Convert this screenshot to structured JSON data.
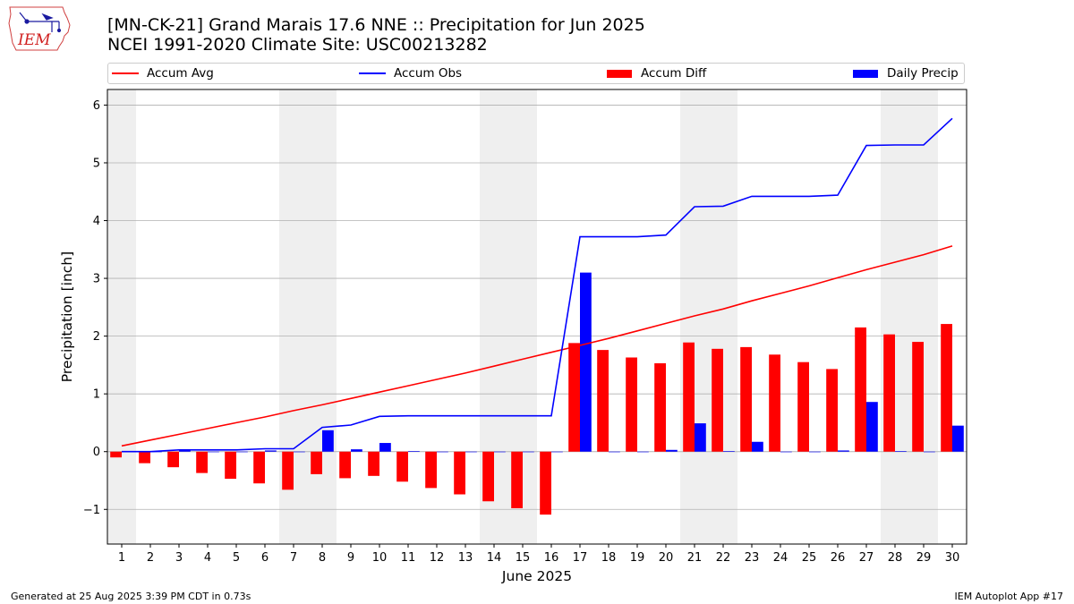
{
  "header": {
    "title_line1": "[MN-CK-21] Grand Marais 17.6 NNE :: Precipitation for Jun 2025",
    "title_line2": "NCEI 1991-2020 Climate Site: USC00213282",
    "logo_text": "IEM"
  },
  "legend": {
    "items": [
      {
        "label": "Accum Avg",
        "color": "#ff0000",
        "kind": "line"
      },
      {
        "label": "Accum Obs",
        "color": "#0000ff",
        "kind": "line"
      },
      {
        "label": "Accum Diff",
        "color": "#ff0000",
        "kind": "bar"
      },
      {
        "label": "Daily Precip",
        "color": "#0000ff",
        "kind": "bar"
      }
    ]
  },
  "footer": {
    "generated": "Generated at 25 Aug 2025 3:39 PM CDT in 0.73s",
    "app": "IEM Autoplot App #17"
  },
  "chart_data": {
    "type": "bar",
    "xlabel": "June 2025",
    "ylabel": "Precipitation [inch]",
    "ylim": [
      -1.6,
      6.27
    ],
    "yticks": [
      -1,
      0,
      1,
      2,
      3,
      4,
      5,
      6
    ],
    "ytick_labels": [
      "−1",
      "0",
      "1",
      "2",
      "3",
      "4",
      "5",
      "6"
    ],
    "grid": "horizontal",
    "weekend_shading_color": "#efefef",
    "shaded_days": [
      1,
      7,
      8,
      14,
      15,
      21,
      22,
      28,
      29
    ],
    "categories": [
      "1",
      "2",
      "3",
      "4",
      "5",
      "6",
      "7",
      "8",
      "9",
      "10",
      "11",
      "12",
      "13",
      "14",
      "15",
      "16",
      "17",
      "18",
      "19",
      "20",
      "21",
      "22",
      "23",
      "24",
      "25",
      "26",
      "27",
      "28",
      "29",
      "30"
    ],
    "series": [
      {
        "name": "Accum Avg",
        "kind": "line",
        "color": "#ff0000",
        "values": [
          0.1,
          0.2,
          0.3,
          0.4,
          0.5,
          0.6,
          0.71,
          0.81,
          0.92,
          1.03,
          1.14,
          1.25,
          1.36,
          1.48,
          1.6,
          1.72,
          1.84,
          1.96,
          2.09,
          2.22,
          2.35,
          2.47,
          2.61,
          2.74,
          2.87,
          3.01,
          3.15,
          3.28,
          3.41,
          3.56
        ]
      },
      {
        "name": "Accum Obs",
        "kind": "line",
        "color": "#0000ff",
        "values": [
          0.0,
          0.0,
          0.03,
          0.03,
          0.03,
          0.05,
          0.05,
          0.42,
          0.46,
          0.61,
          0.62,
          0.62,
          0.62,
          0.62,
          0.62,
          0.62,
          3.72,
          3.72,
          3.72,
          3.75,
          4.24,
          4.25,
          4.42,
          4.42,
          4.42,
          4.44,
          5.3,
          5.31,
          5.31,
          5.77
        ]
      },
      {
        "name": "Accum Diff",
        "kind": "bar",
        "color": "#ff0000",
        "values": [
          -0.1,
          -0.2,
          -0.27,
          -0.37,
          -0.47,
          -0.55,
          -0.66,
          -0.39,
          -0.46,
          -0.42,
          -0.52,
          -0.63,
          -0.74,
          -0.86,
          -0.98,
          -1.09,
          1.88,
          1.76,
          1.63,
          1.53,
          1.89,
          1.78,
          1.81,
          1.68,
          1.55,
          1.43,
          2.15,
          2.03,
          1.9,
          2.21
        ]
      },
      {
        "name": "Daily Precip",
        "kind": "bar",
        "color": "#0000ff",
        "values": [
          0.0,
          0.0,
          0.03,
          0.0,
          0.0,
          0.02,
          0.0,
          0.37,
          0.04,
          0.15,
          0.01,
          0.0,
          0.0,
          0.0,
          0.0,
          0.0,
          3.1,
          0.0,
          0.0,
          0.03,
          0.49,
          0.01,
          0.17,
          0.0,
          0.0,
          0.02,
          0.86,
          0.01,
          0.0,
          0.45
        ]
      }
    ]
  }
}
